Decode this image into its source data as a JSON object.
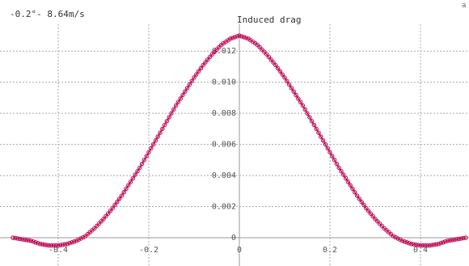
{
  "header": {
    "condition_label": "-0.2°- 8.64m/s",
    "right_edge_glyph": "a"
  },
  "chart_data": {
    "type": "scatter",
    "title": "Induced drag",
    "xlabel": "",
    "ylabel": "",
    "xlim": [
      -0.5,
      0.5
    ],
    "ylim": [
      -0.0007,
      0.0137
    ],
    "grid": true,
    "x_ticks": [
      -0.4,
      -0.2,
      0,
      0.2,
      0.4
    ],
    "x_tick_labels": [
      "-0.4",
      "-0.2",
      "0",
      "0.2",
      "0.4"
    ],
    "y_ticks": [
      0,
      0.002,
      0.004,
      0.006,
      0.008,
      0.01,
      0.012
    ],
    "y_tick_labels": [
      "0",
      "0.002",
      "0.004",
      "0.006",
      "0.008",
      "0.010",
      "0.012"
    ],
    "series": [
      {
        "color": "#c0185e",
        "marker": "open-circle",
        "x": [
          -0.5,
          -0.48,
          -0.46,
          -0.44,
          -0.42,
          -0.4,
          -0.38,
          -0.36,
          -0.34,
          -0.32,
          -0.3,
          -0.28,
          -0.26,
          -0.24,
          -0.22,
          -0.2,
          -0.18,
          -0.16,
          -0.14,
          -0.12,
          -0.1,
          -0.08,
          -0.06,
          -0.04,
          -0.02,
          0,
          0.02,
          0.04,
          0.06,
          0.08,
          0.1,
          0.12,
          0.14,
          0.16,
          0.18,
          0.2,
          0.22,
          0.24,
          0.26,
          0.28,
          0.3,
          0.32,
          0.34,
          0.36,
          0.38,
          0.4,
          0.42,
          0.44,
          0.46,
          0.48,
          0.5
        ],
        "y": [
          0.0,
          -0.0001,
          -0.0002,
          -0.0004,
          -0.0005,
          -0.0005,
          -0.0004,
          -0.0002,
          0.0001,
          0.0006,
          0.0012,
          0.0019,
          0.0027,
          0.0036,
          0.0045,
          0.0055,
          0.0065,
          0.0075,
          0.0085,
          0.0094,
          0.0103,
          0.0111,
          0.0118,
          0.0124,
          0.0128,
          0.013,
          0.0128,
          0.0124,
          0.0118,
          0.0111,
          0.0103,
          0.0094,
          0.0085,
          0.0075,
          0.0065,
          0.0055,
          0.0045,
          0.0036,
          0.0027,
          0.0019,
          0.0012,
          0.0006,
          0.0001,
          -0.0002,
          -0.0004,
          -0.0005,
          -0.0005,
          -0.0004,
          -0.0002,
          -0.0001,
          0.0
        ]
      }
    ]
  }
}
